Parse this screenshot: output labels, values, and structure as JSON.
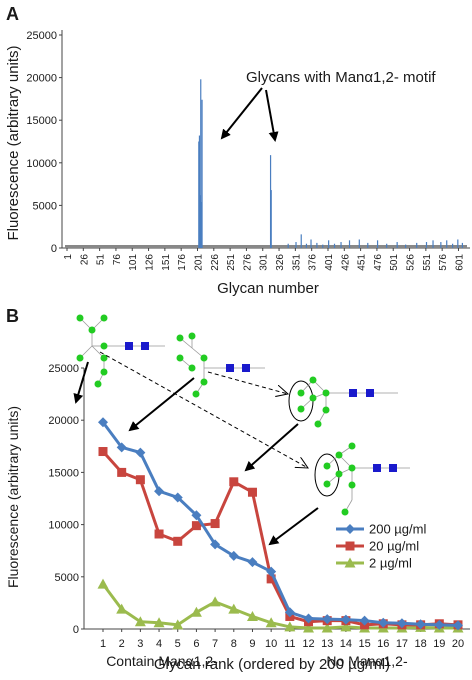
{
  "panel_a": {
    "letter": "A",
    "annotation": "Glycans with Manα1,2- motif"
  },
  "panel_b": {
    "letter": "B",
    "bottom_left_label": "Contain Manα1,2-",
    "bottom_right_label": "No Manα1,2-"
  },
  "colors": {
    "bar_blue": "#4a7ec0",
    "baseline_gray": "#888888",
    "s200": "#4a7ec0",
    "s20": "#c8453e",
    "s2": "#9bbb4e",
    "glycan_green": "#22cc22",
    "glycan_blue": "#1a1acc"
  },
  "chart_data": [
    {
      "type": "bar",
      "ylabel": "Fluorescence (arbitrary units)",
      "xlabel": "Glycan number",
      "ylim": [
        0,
        25000
      ],
      "yticks": [
        0,
        5000,
        10000,
        15000,
        20000,
        25000
      ],
      "xlim": [
        1,
        611
      ],
      "xticks": [
        1,
        26,
        51,
        76,
        101,
        126,
        151,
        176,
        201,
        226,
        251,
        276,
        301,
        326,
        351,
        376,
        401,
        426,
        451,
        476,
        501,
        526,
        551,
        576,
        601
      ],
      "bars": [
        {
          "x": 203,
          "y": 12500
        },
        {
          "x": 204,
          "y": 13200
        },
        {
          "x": 205,
          "y": 6200
        },
        {
          "x": 206,
          "y": 19800
        },
        {
          "x": 207,
          "y": 5400
        },
        {
          "x": 208,
          "y": 17400
        },
        {
          "x": 313,
          "y": 10900
        },
        {
          "x": 314,
          "y": 6800
        },
        {
          "x": 340,
          "y": 500
        },
        {
          "x": 352,
          "y": 700
        },
        {
          "x": 360,
          "y": 1600
        },
        {
          "x": 368,
          "y": 500
        },
        {
          "x": 375,
          "y": 1000
        },
        {
          "x": 384,
          "y": 600
        },
        {
          "x": 393,
          "y": 400
        },
        {
          "x": 402,
          "y": 900
        },
        {
          "x": 411,
          "y": 500
        },
        {
          "x": 421,
          "y": 700
        },
        {
          "x": 434,
          "y": 900
        },
        {
          "x": 449,
          "y": 1000
        },
        {
          "x": 462,
          "y": 600
        },
        {
          "x": 477,
          "y": 900
        },
        {
          "x": 491,
          "y": 500
        },
        {
          "x": 507,
          "y": 700
        },
        {
          "x": 520,
          "y": 400
        },
        {
          "x": 537,
          "y": 600
        },
        {
          "x": 552,
          "y": 700
        },
        {
          "x": 562,
          "y": 900
        },
        {
          "x": 574,
          "y": 700
        },
        {
          "x": 583,
          "y": 900
        },
        {
          "x": 592,
          "y": 500
        },
        {
          "x": 600,
          "y": 1000
        },
        {
          "x": 607,
          "y": 600
        }
      ]
    },
    {
      "type": "line",
      "ylabel": "Fluorescence (arbitrary units)",
      "xlabel": "Glycan rank (ordered by 200 µg/ml)",
      "ylim": [
        0,
        25000
      ],
      "yticks": [
        0,
        5000,
        10000,
        15000,
        20000,
        25000
      ],
      "x": [
        1,
        2,
        3,
        4,
        5,
        6,
        7,
        8,
        9,
        10,
        11,
        12,
        13,
        14,
        15,
        16,
        17,
        18,
        19,
        20
      ],
      "series": [
        {
          "name": "200 µg/ml",
          "marker": "diamond",
          "values": [
            19800,
            17400,
            16900,
            13200,
            12600,
            10900,
            8100,
            7000,
            6400,
            5500,
            1600,
            1000,
            950,
            900,
            800,
            600,
            550,
            450,
            400,
            350
          ]
        },
        {
          "name": "20 µg/ml",
          "marker": "square",
          "values": [
            17000,
            15000,
            14300,
            9100,
            8400,
            9900,
            10100,
            14100,
            13100,
            4800,
            1200,
            700,
            800,
            800,
            400,
            500,
            400,
            400,
            500,
            400
          ]
        },
        {
          "name": "2 µg/ml",
          "marker": "triangle",
          "values": [
            4300,
            1900,
            700,
            600,
            400,
            1600,
            2600,
            1900,
            1200,
            600,
            200,
            100,
            100,
            200,
            100,
            100,
            100,
            150,
            100,
            100
          ]
        }
      ]
    }
  ]
}
